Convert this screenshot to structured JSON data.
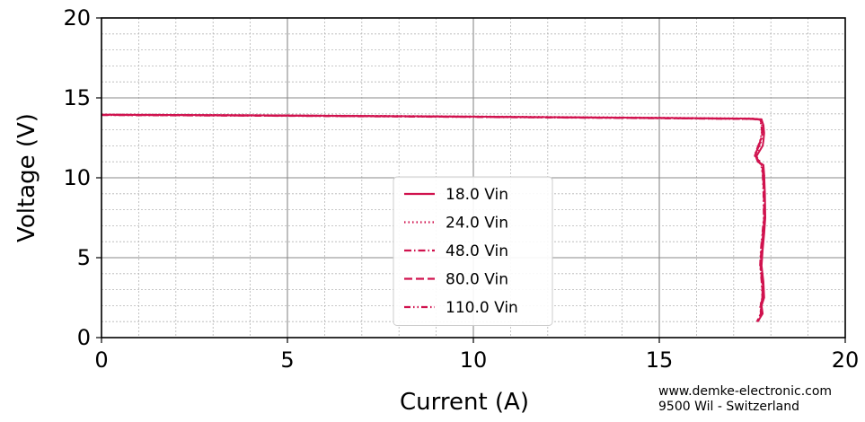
{
  "chart_data": {
    "type": "line",
    "xlabel": "Current (A)",
    "ylabel": "Voltage (V)",
    "xlim": [
      0,
      20
    ],
    "ylim": [
      0,
      20
    ],
    "xticks": [
      "0",
      "5",
      "10",
      "15",
      "20"
    ],
    "yticks": [
      "0",
      "5",
      "10",
      "15",
      "20"
    ],
    "grid": true,
    "minor_grid": true,
    "legend_position": "center-bottom",
    "series": [
      {
        "name": "18.0 Vin",
        "linestyle": "solid",
        "color": "#d0124e",
        "x": [
          0,
          5,
          10,
          15,
          17.5,
          17.75,
          17.8,
          17.82,
          17.8,
          17.78,
          17.6,
          17.65,
          17.8,
          17.82,
          17.84,
          17.85,
          17.82,
          17.78,
          17.75,
          17.8,
          17.82,
          17.75,
          17.78,
          17.7,
          17.65
        ],
        "y": [
          13.95,
          13.9,
          13.83,
          13.75,
          13.7,
          13.65,
          13.3,
          12.8,
          12.3,
          12.0,
          11.3,
          11.0,
          10.8,
          10.2,
          9.0,
          7.5,
          6.5,
          5.5,
          4.5,
          3.5,
          2.5,
          2.0,
          1.5,
          1.2,
          1.0
        ]
      },
      {
        "name": "24.0 Vin",
        "linestyle": "dotted",
        "color": "#d0124e",
        "x": [
          0,
          5,
          10,
          15,
          17.5,
          17.75,
          17.78,
          17.8,
          17.75,
          17.7,
          17.6,
          17.68,
          17.78,
          17.82,
          17.83,
          17.84,
          17.8,
          17.76,
          17.74,
          17.78,
          17.8,
          17.74,
          17.76,
          17.7,
          17.64
        ],
        "y": [
          13.96,
          13.91,
          13.84,
          13.76,
          13.71,
          13.66,
          13.3,
          12.9,
          12.4,
          12.0,
          11.4,
          11.1,
          10.8,
          10.2,
          9.0,
          7.5,
          6.5,
          5.5,
          4.5,
          3.5,
          2.5,
          2.0,
          1.5,
          1.2,
          1.0
        ]
      },
      {
        "name": "48.0 Vin",
        "linestyle": "dashdot",
        "color": "#d0124e",
        "x": [
          0,
          5,
          10,
          15,
          17.5,
          17.73,
          17.76,
          17.78,
          17.74,
          17.68,
          17.58,
          17.66,
          17.76,
          17.8,
          17.82,
          17.83,
          17.79,
          17.75,
          17.73,
          17.77,
          17.79,
          17.73,
          17.75,
          17.69,
          17.63
        ],
        "y": [
          13.94,
          13.89,
          13.82,
          13.74,
          13.69,
          13.64,
          13.3,
          12.9,
          12.4,
          12.0,
          11.4,
          11.1,
          10.8,
          10.2,
          9.0,
          7.5,
          6.5,
          5.5,
          4.5,
          3.5,
          2.5,
          2.0,
          1.5,
          1.2,
          1.0
        ]
      },
      {
        "name": "80.0 Vin",
        "linestyle": "dashed",
        "color": "#d0124e",
        "x": [
          0,
          5,
          10,
          15,
          17.5,
          17.72,
          17.75,
          17.77,
          17.73,
          17.67,
          17.57,
          17.65,
          17.75,
          17.79,
          17.81,
          17.82,
          17.78,
          17.74,
          17.72,
          17.76,
          17.78,
          17.72,
          17.74,
          17.68,
          17.62
        ],
        "y": [
          13.93,
          13.88,
          13.81,
          13.73,
          13.68,
          13.63,
          13.3,
          12.9,
          12.4,
          12.0,
          11.4,
          11.1,
          10.8,
          10.2,
          9.0,
          7.5,
          6.5,
          5.5,
          4.5,
          3.5,
          2.5,
          2.0,
          1.5,
          1.2,
          1.0
        ]
      },
      {
        "name": "110.0 Vin",
        "linestyle": "dashdotdot",
        "color": "#d0124e",
        "x": [
          0,
          5,
          10,
          15,
          17.5,
          17.71,
          17.74,
          17.76,
          17.72,
          17.66,
          17.56,
          17.64,
          17.74,
          17.78,
          17.8,
          17.81,
          17.77,
          17.73,
          17.71,
          17.75,
          17.77,
          17.71,
          17.73,
          17.67,
          17.61
        ],
        "y": [
          13.92,
          13.87,
          13.8,
          13.72,
          13.67,
          13.62,
          13.3,
          12.9,
          12.4,
          12.0,
          11.4,
          11.1,
          10.8,
          10.2,
          9.0,
          7.5,
          6.5,
          5.5,
          4.5,
          3.5,
          2.5,
          2.0,
          1.5,
          1.2,
          1.0
        ]
      }
    ]
  },
  "footer": {
    "line1": "www.demke-electronic.com",
    "line2": "9500 Wil - Switzerland"
  }
}
